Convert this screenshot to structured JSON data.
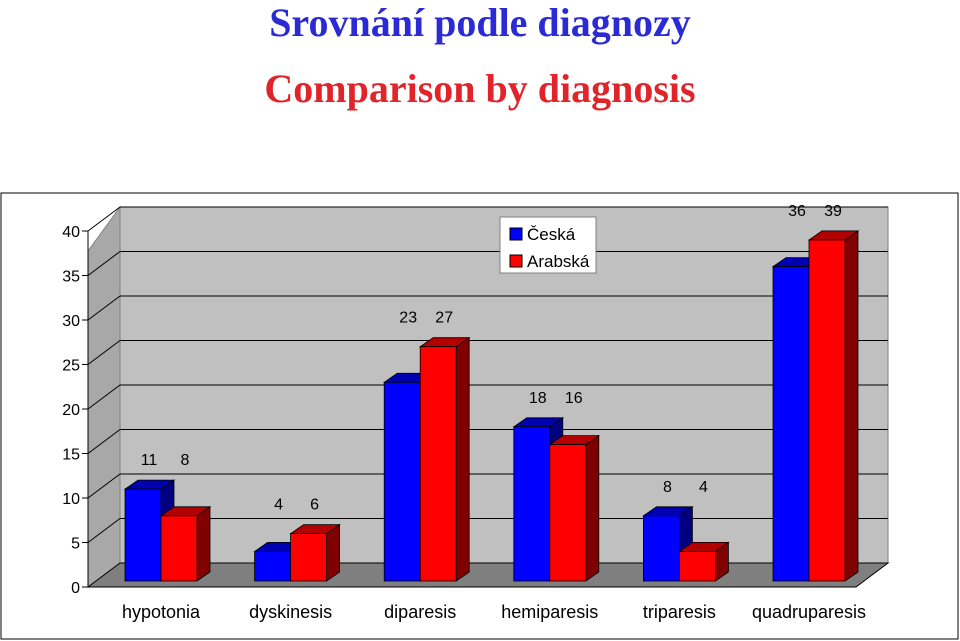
{
  "chart_data": {
    "type": "bar",
    "title": "Srovnání podle diagnozy",
    "subtitle": "Comparison by diagnosis",
    "categories": [
      "hypotonia",
      "dyskinesis",
      "diparesis",
      "hemiparesis",
      "triparesis",
      "quadruparesis"
    ],
    "series": [
      {
        "name": "Česká",
        "values": [
          11,
          4,
          23,
          18,
          8,
          36
        ],
        "color": "#0000ff"
      },
      {
        "name": "Arabská",
        "values": [
          8,
          6,
          27,
          16,
          4,
          39
        ],
        "color": "#ff0000"
      }
    ],
    "ylim": [
      0,
      40
    ],
    "yticks": [
      0,
      5,
      10,
      15,
      20,
      25,
      30,
      35,
      40
    ],
    "grid": true,
    "legend": "top-center",
    "style": "3d-column"
  }
}
